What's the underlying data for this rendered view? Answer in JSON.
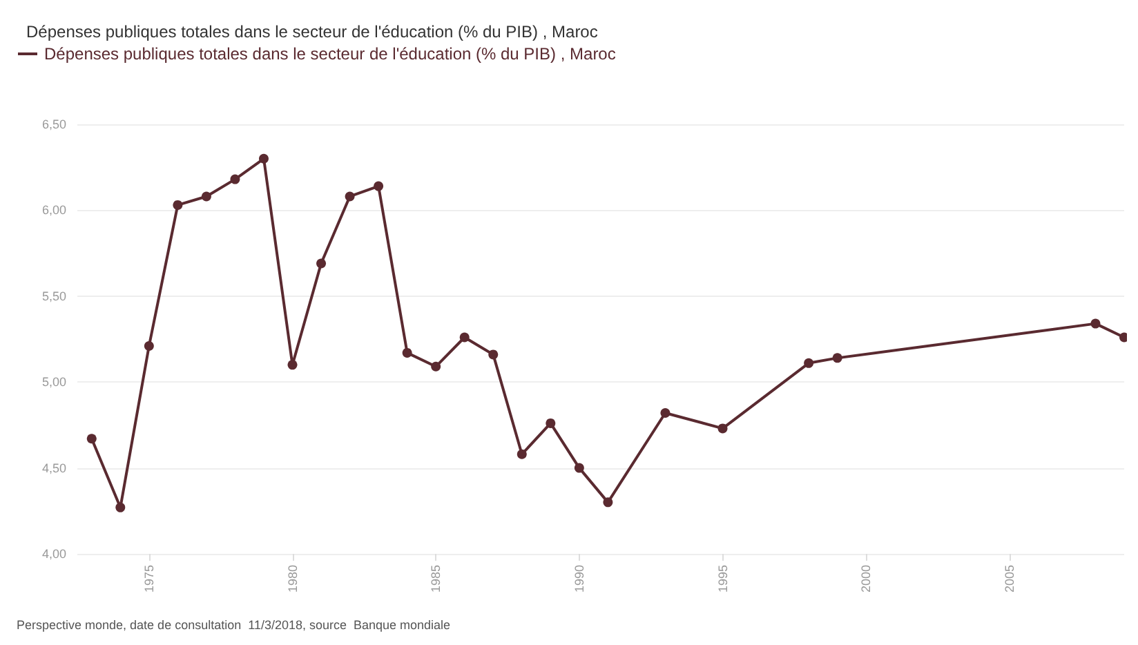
{
  "chart_data": {
    "type": "line",
    "title": "Dépenses publiques totales dans le secteur de l'éducation (% du PIB) , Maroc",
    "annotations": [
      "Perspective monde, date de consultation  11/3/2018, source  Banque mondiale"
    ],
    "x": [
      1973,
      1974,
      1975,
      1976,
      1977,
      1978,
      1979,
      1980,
      1981,
      1982,
      1983,
      1984,
      1985,
      1986,
      1987,
      1988,
      1989,
      1990,
      1991,
      1993,
      1995,
      1998,
      1999,
      2008,
      2009
    ],
    "series": [
      {
        "name": "Dépenses publiques totales dans le secteur de l'éducation (% du PIB) , Maroc",
        "color": "#5a2a30",
        "values": [
          4.67,
          4.27,
          5.21,
          6.03,
          6.08,
          6.18,
          6.3,
          5.1,
          5.69,
          6.08,
          6.14,
          5.17,
          5.09,
          5.26,
          5.16,
          4.58,
          4.76,
          4.5,
          4.3,
          4.82,
          4.73,
          5.11,
          5.14,
          5.34,
          5.26
        ]
      }
    ],
    "xlim": [
      1972.5,
      2009
    ],
    "xticks": [
      1975,
      1980,
      1985,
      1990,
      1995,
      2000,
      2005
    ],
    "ylim": [
      4,
      6.5
    ],
    "yticks": [
      {
        "value": 4,
        "label": "4,00"
      },
      {
        "value": 4.5,
        "label": "4,50"
      },
      {
        "value": 5,
        "label": "5,00"
      },
      {
        "value": 5.5,
        "label": "5,50"
      },
      {
        "value": 6,
        "label": "6,00"
      },
      {
        "value": 6.5,
        "label": "6,50"
      }
    ],
    "grid": "y",
    "legend": "top left",
    "marker": "circle",
    "line_style": "solid"
  }
}
